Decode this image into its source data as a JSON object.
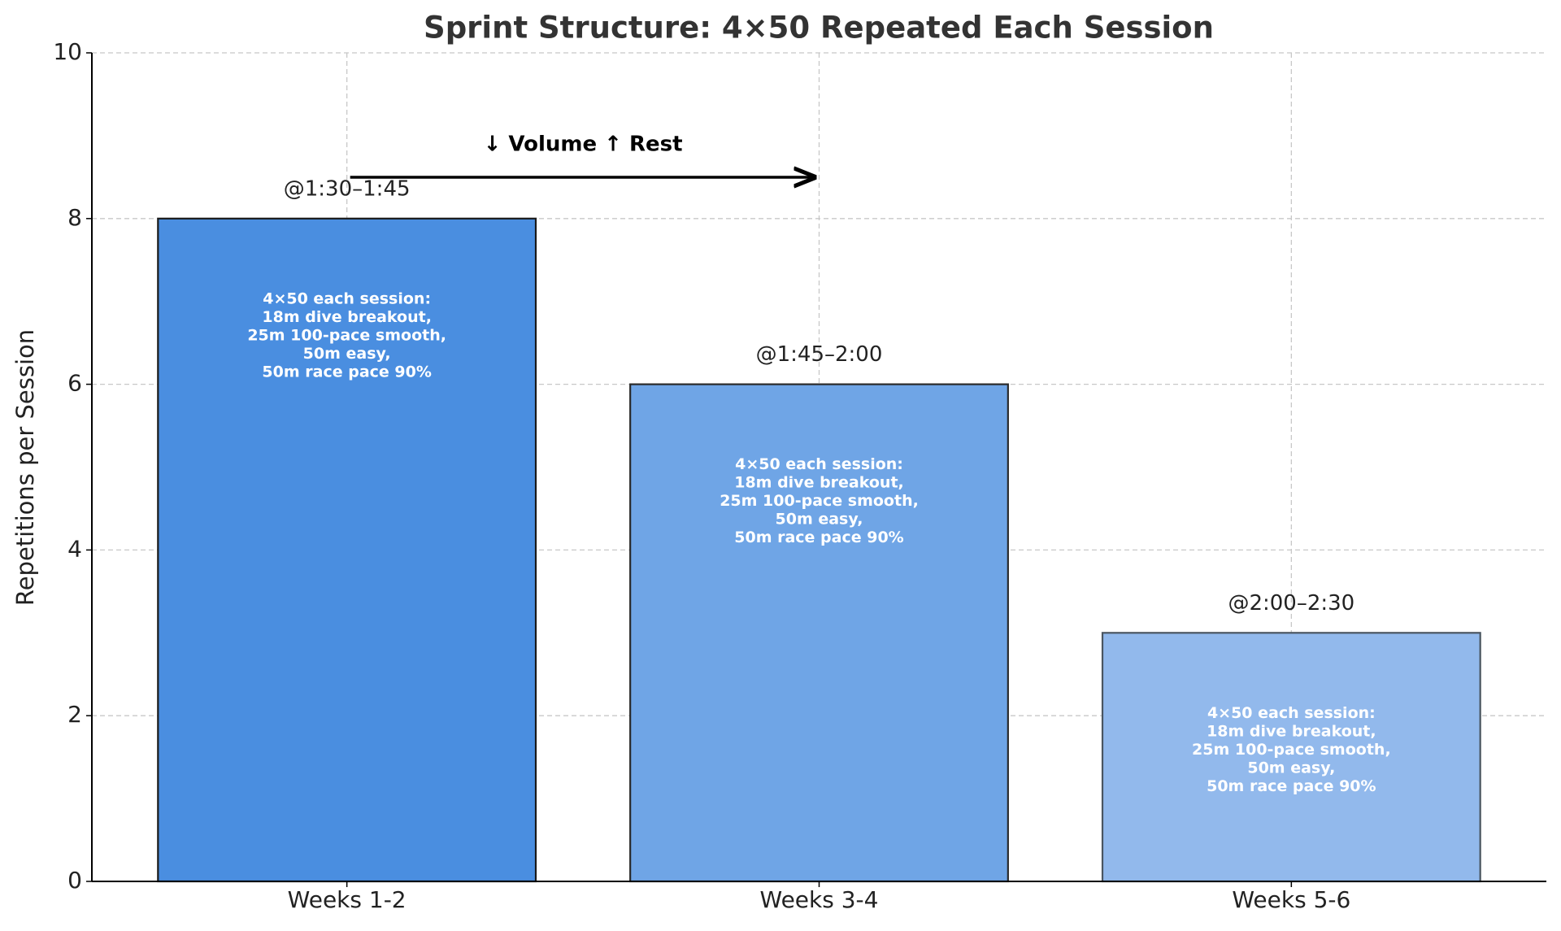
{
  "chart_data": {
    "type": "bar",
    "title": "Sprint Structure: 4×50 Repeated Each Session",
    "y_label": "Repetitions per Session",
    "categories": [
      "Weeks 1-2",
      "Weeks 3-4",
      "Weeks 5-6"
    ],
    "values": [
      8,
      6,
      3
    ],
    "value_labels": [
      "@1:30–1:45",
      "@1:45–2:00",
      "@2:00–2:30"
    ],
    "colors": [
      "#4a8ee0",
      "#6fa5e6",
      "#92b9ec"
    ],
    "edge_colors": [
      "#1a1a1a",
      "#2a2a2a",
      "#4a5560"
    ],
    "bar_notes": [
      [
        "4×50 each session:",
        "18m dive breakout,",
        "25m 100-pace smooth,",
        "50m easy,",
        "50m race pace 90%"
      ],
      [
        "4×50 each session:",
        "18m dive breakout,",
        "25m 100-pace smooth,",
        "50m easy,",
        "50m race pace 90%"
      ],
      [
        "4×50 each session:",
        "18m dive breakout,",
        "25m 100-pace smooth,",
        "50m easy,",
        "50m race pace 90%"
      ]
    ],
    "annotation": "↓ Volume  ↑ Rest",
    "ylim": [
      0,
      10
    ],
    "yticks": [
      0,
      2,
      4,
      6,
      8,
      10
    ],
    "grid": true
  }
}
